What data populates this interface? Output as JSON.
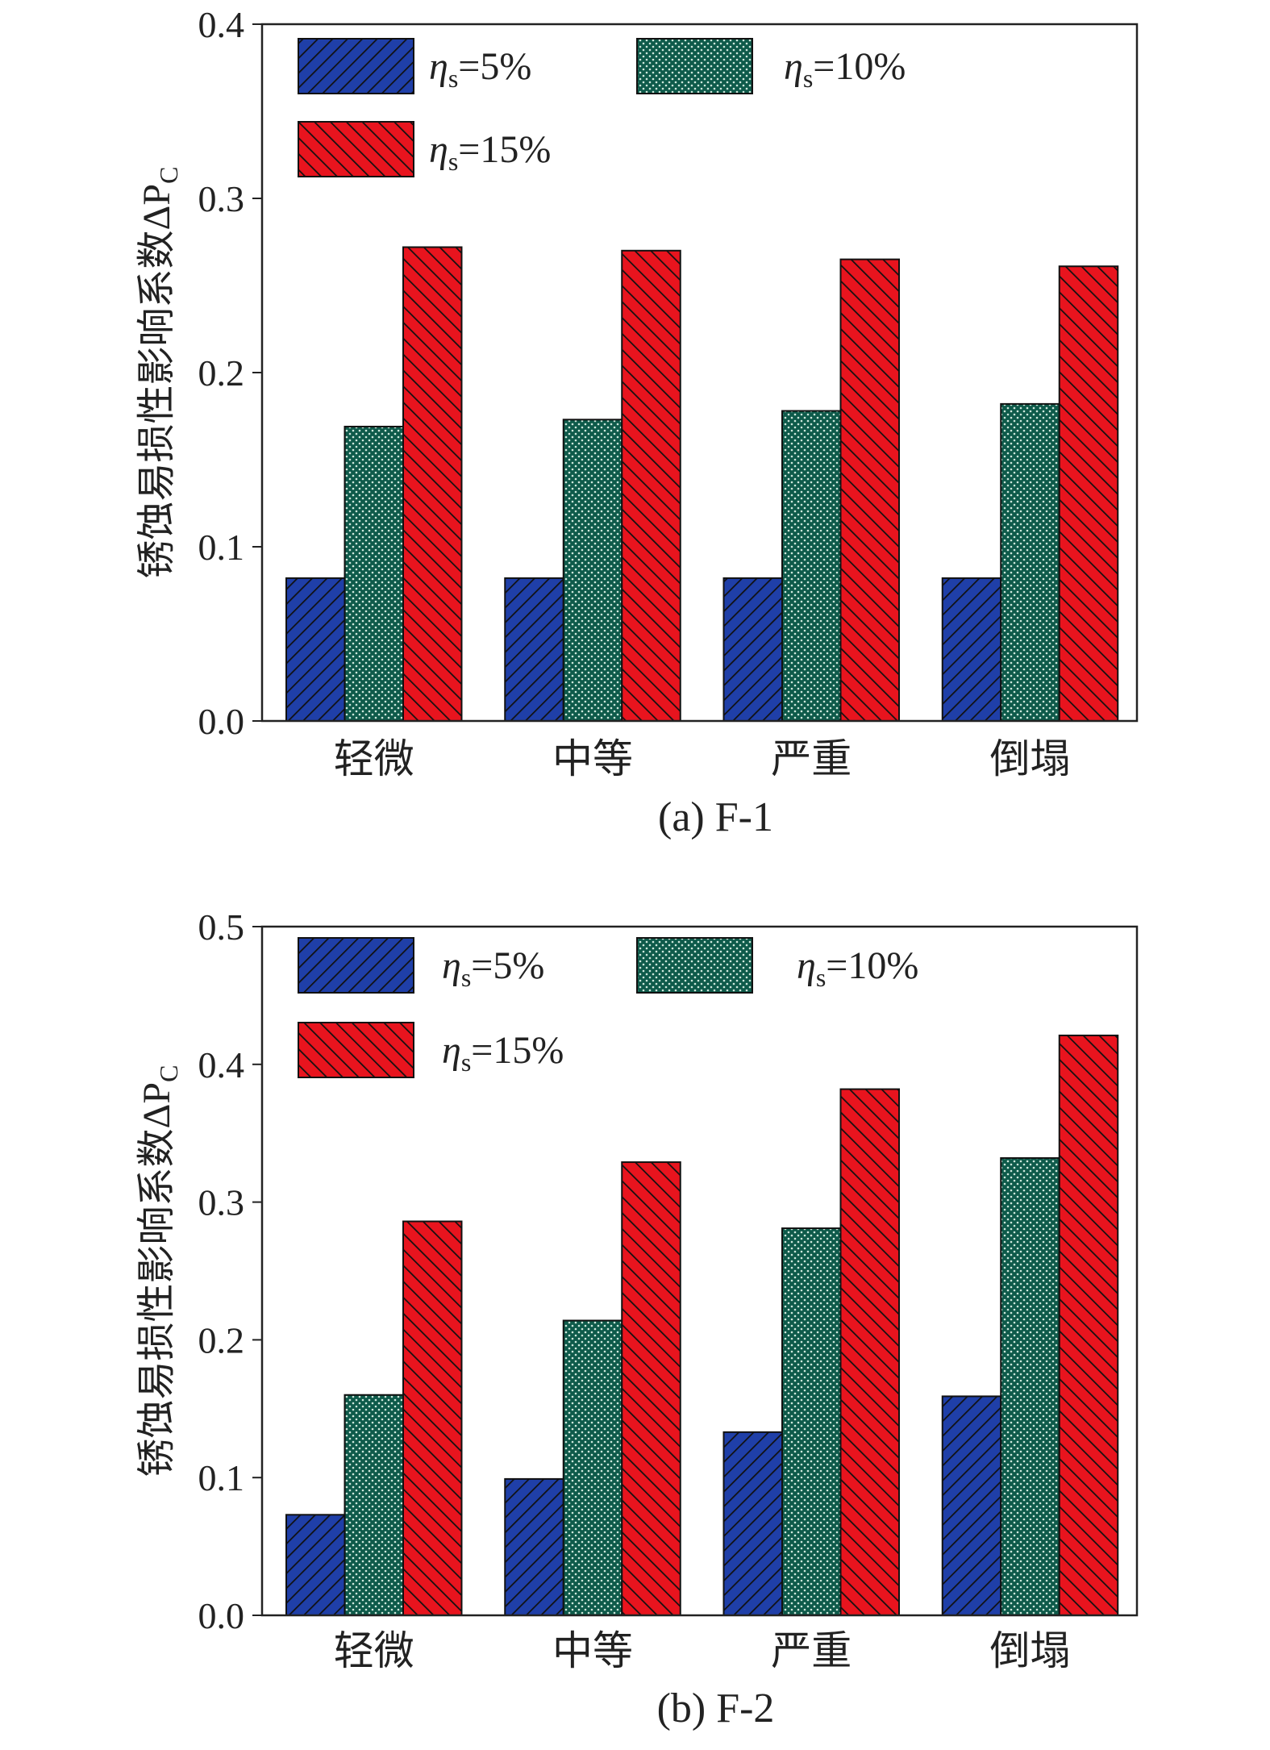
{
  "colors": {
    "series": [
      "#1f3fa8",
      "#0e5a4a",
      "#e8141e"
    ],
    "axis": "#222222"
  },
  "chart_data": [
    {
      "type": "bar",
      "caption": "(a) F-1",
      "ylabel": "锈蚀易损性影响系数ΔP_C",
      "ylabel_main": "锈蚀易损性影响系数ΔP",
      "ylabel_sub": "C",
      "ylim": [
        0,
        0.4
      ],
      "yticks": [
        "0.0",
        "0.1",
        "0.2",
        "0.3",
        "0.4"
      ],
      "categories": [
        "轻微",
        "中等",
        "严重",
        "倒塌"
      ],
      "legend_position": "top-left",
      "series": [
        {
          "name": "η_s=5%",
          "eta": "η",
          "sub": "s",
          "rest": "=5%",
          "pattern": "diag-blue",
          "values": [
            0.082,
            0.082,
            0.082,
            0.082
          ]
        },
        {
          "name": "η_s=10%",
          "eta": "η",
          "sub": "s",
          "rest": "=10%",
          "pattern": "dots-green",
          "values": [
            0.169,
            0.173,
            0.178,
            0.182
          ]
        },
        {
          "name": "η_s=15%",
          "eta": "η",
          "sub": "s",
          "rest": "=15%",
          "pattern": "diag-red",
          "values": [
            0.272,
            0.27,
            0.265,
            0.261
          ]
        }
      ]
    },
    {
      "type": "bar",
      "caption": "(b) F-2",
      "ylabel": "锈蚀易损性影响系数ΔP_C",
      "ylabel_main": "锈蚀易损性影响系数ΔP",
      "ylabel_sub": "C",
      "ylim": [
        0,
        0.5
      ],
      "yticks": [
        "0.0",
        "0.1",
        "0.2",
        "0.3",
        "0.4",
        "0.5"
      ],
      "categories": [
        "轻微",
        "中等",
        "严重",
        "倒塌"
      ],
      "legend_position": "top-left",
      "series": [
        {
          "name": "η_s=5%",
          "eta": "η",
          "sub": "s",
          "rest": "=5%",
          "pattern": "diag-blue",
          "values": [
            0.073,
            0.099,
            0.133,
            0.159
          ]
        },
        {
          "name": "η_s=10%",
          "eta": "η",
          "sub": "s",
          "rest": "=10%",
          "pattern": "dots-green",
          "values": [
            0.16,
            0.214,
            0.281,
            0.332
          ]
        },
        {
          "name": "η_s=15%",
          "eta": "η",
          "sub": "s",
          "rest": "=15%",
          "pattern": "diag-red",
          "values": [
            0.286,
            0.329,
            0.382,
            0.421
          ]
        }
      ]
    }
  ]
}
